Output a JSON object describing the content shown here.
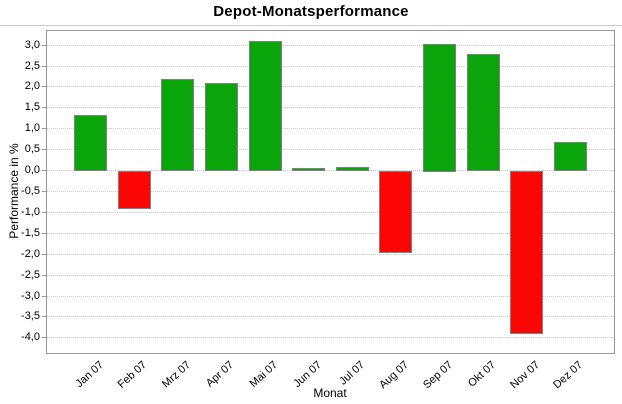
{
  "chart_data": {
    "type": "bar",
    "title": "Depot-Monatsperformance",
    "xlabel": "Monat",
    "ylabel": "Performance in %",
    "categories": [
      "Jan 07",
      "Feb 07",
      "Mrz 07",
      "Apr 07",
      "Mai 07",
      "Jun 07",
      "Jul 07",
      "Aug 07",
      "Sep 07",
      "Okt 07",
      "Nov 07",
      "Dez 07"
    ],
    "values": [
      1.35,
      -0.9,
      2.2,
      2.1,
      3.1,
      0.07,
      0.1,
      -1.95,
      3.05,
      2.8,
      -3.9,
      0.7
    ],
    "ylim": [
      -4.35,
      3.35
    ],
    "yticks": [
      3.0,
      2.5,
      2.0,
      1.5,
      1.0,
      0.5,
      0.0,
      -0.5,
      -1.0,
      -1.5,
      -2.0,
      -2.5,
      -3.0,
      -3.5,
      -4.0
    ],
    "ytick_labels": [
      "3,0",
      "2,5",
      "2,0",
      "1,5",
      "1,0",
      "0,5",
      "0,0",
      "-0,5",
      "-1,0",
      "-1,5",
      "-2,0",
      "-2,5",
      "-3,0",
      "-3,5",
      "-4,0"
    ],
    "decimal_separator": ",",
    "grid": "horizontal-dotted",
    "legend": "none",
    "colors": {
      "positive": "#0aa50a",
      "negative": "#fb0505",
      "bar_outline": "#808080",
      "gridline": "#c9c9c9",
      "axis_frame": "#999999",
      "title_separator": "#cccccc",
      "text": "#000000"
    }
  }
}
